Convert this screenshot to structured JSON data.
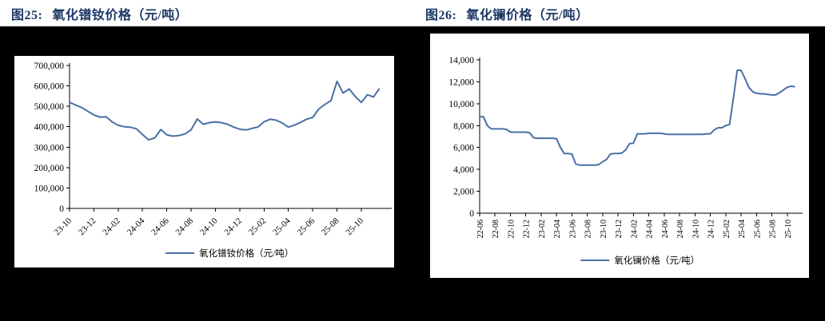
{
  "page": {
    "background_color": "#000000",
    "header_background": "#ffffff",
    "title_color": "#1b3764"
  },
  "chart_data": [
    {
      "type": "line",
      "figure_label": "图25:",
      "title": "氧化镨钕价格（元/吨）",
      "legend": "氧化镨钕价格（元/吨）",
      "line_color": "#4a6fa5",
      "axis_color": "#000000",
      "grid": false,
      "legend_position": "bottom-center",
      "x_start": "2023-10",
      "x_interval_months": 0.5,
      "x_tick_interval_months": 2,
      "x_tick_labels": [
        "23-10",
        "23-12",
        "24-02",
        "24-04",
        "24-06",
        "24-08",
        "24-10",
        "24-12",
        "25-02",
        "25-04",
        "25-06",
        "25-08",
        "25-10"
      ],
      "ylim": [
        0,
        700000
      ],
      "y_tick_step": 100000,
      "values": [
        520000,
        506000,
        494000,
        476000,
        458000,
        447000,
        449000,
        424000,
        407000,
        400000,
        398000,
        390000,
        362000,
        336000,
        345000,
        386000,
        360000,
        354000,
        357000,
        365000,
        385000,
        438000,
        412000,
        420000,
        424000,
        420000,
        412000,
        398000,
        388000,
        384000,
        392000,
        399000,
        424000,
        437000,
        432000,
        418000,
        398000,
        408000,
        421000,
        437000,
        446000,
        487000,
        509000,
        528000,
        622000,
        565000,
        585000,
        548000,
        519000,
        557000,
        546000,
        588000
      ]
    },
    {
      "type": "line",
      "figure_label": "图26:",
      "title": "氧化镧价格（元/吨）",
      "legend": "氧化镧价格（元/吨）",
      "line_color": "#4a6fa5",
      "axis_color": "#000000",
      "grid": false,
      "legend_position": "bottom-center",
      "x_start": "2022-06",
      "x_interval_months": 0.5,
      "x_tick_interval_months": 2,
      "x_tick_labels": [
        "22-06",
        "22-08",
        "22-10",
        "22-12",
        "23-02",
        "23-04",
        "23-06",
        "23-08",
        "23-10",
        "23-12",
        "24-02",
        "24-04",
        "24-06",
        "24-08",
        "24-10",
        "24-12",
        "25-02",
        "25-04",
        "25-06",
        "25-08",
        "25-10"
      ],
      "ylim": [
        0,
        14000
      ],
      "y_tick_step": 2000,
      "values": [
        8800,
        8800,
        8000,
        7700,
        7700,
        7700,
        7700,
        7650,
        7400,
        7400,
        7400,
        7400,
        7400,
        7350,
        6900,
        6850,
        6850,
        6850,
        6850,
        6850,
        6800,
        6000,
        5450,
        5450,
        5400,
        4500,
        4400,
        4400,
        4400,
        4400,
        4400,
        4450,
        4700,
        4900,
        5400,
        5450,
        5450,
        5500,
        5800,
        6350,
        6400,
        7250,
        7250,
        7250,
        7300,
        7300,
        7300,
        7300,
        7250,
        7200,
        7200,
        7200,
        7200,
        7200,
        7200,
        7200,
        7200,
        7200,
        7200,
        7250,
        7250,
        7600,
        7800,
        7800,
        8000,
        8100,
        10500,
        13050,
        13050,
        12300,
        11500,
        11100,
        10950,
        10900,
        10900,
        10850,
        10800,
        10800,
        11000,
        11250,
        11500,
        11600,
        11550
      ]
    }
  ]
}
